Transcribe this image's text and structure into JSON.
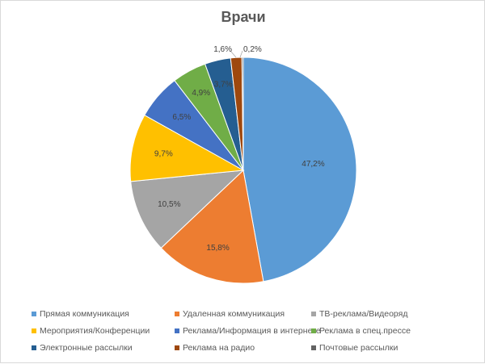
{
  "chart_data": {
    "type": "pie",
    "title": "Врачи",
    "legend_position": "bottom",
    "slices": [
      {
        "label": "Прямая коммуникация",
        "value": 47.2,
        "value_label": "47,2%",
        "color": "#5B9BD5"
      },
      {
        "label": "Удаленная коммуникация",
        "value": 15.8,
        "value_label": "15,8%",
        "color": "#ED7D31"
      },
      {
        "label": "ТВ-реклама/Видеоряд",
        "value": 10.5,
        "value_label": "10,5%",
        "color": "#A5A5A5"
      },
      {
        "label": "Мероприятия/Конференции",
        "value": 9.7,
        "value_label": "9,7%",
        "color": "#FFC000"
      },
      {
        "label": "Реклама/Информация в интернете",
        "value": 6.5,
        "value_label": "6,5%",
        "color": "#4472C4"
      },
      {
        "label": "Реклама в спец.прессе",
        "value": 4.9,
        "value_label": "4,9%",
        "color": "#70AD47"
      },
      {
        "label": "Электронные рассылки",
        "value": 3.7,
        "value_label": "3,7%",
        "color": "#255E91"
      },
      {
        "label": "Реклама на радио",
        "value": 1.6,
        "value_label": "1,6%",
        "color": "#9E480E"
      },
      {
        "label": "Почтовые рассылки",
        "value": 0.2,
        "value_label": "0,2%",
        "color": "#636363"
      }
    ]
  }
}
